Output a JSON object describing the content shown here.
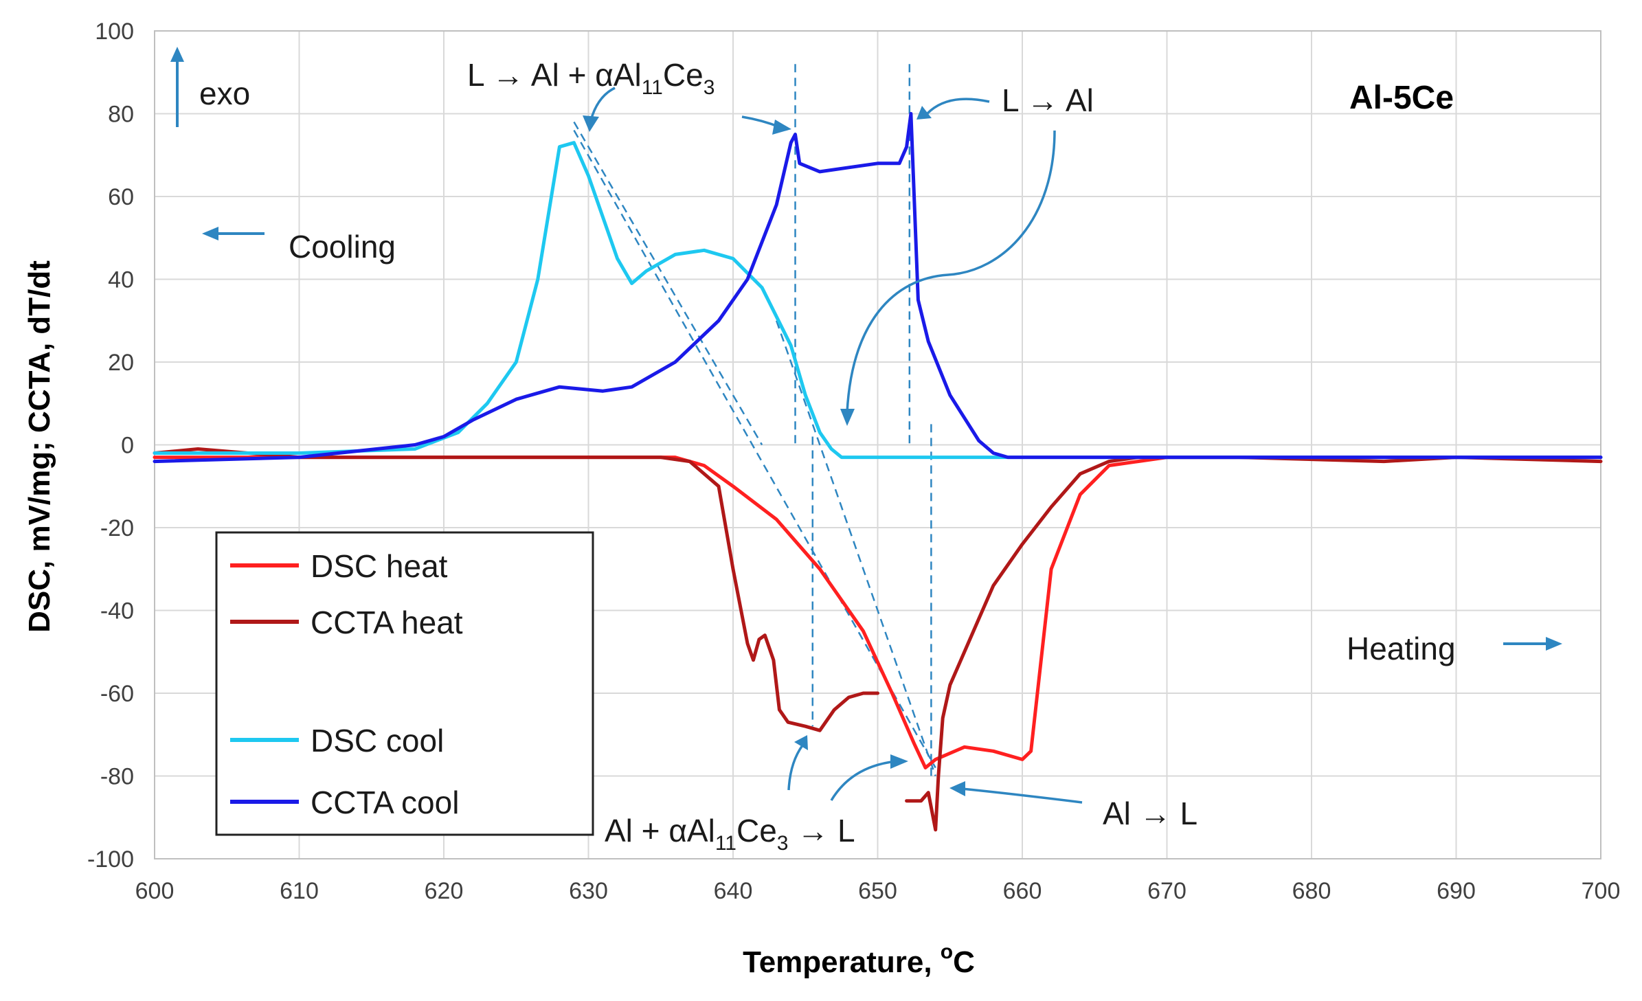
{
  "chart_data": {
    "type": "line",
    "title": "Al-5Ce",
    "xlabel": "Temperature, °C",
    "xlabel_main": "Temperature, ",
    "xlabel_sup": "o",
    "xlabel_unit": "C",
    "ylabel": "DSC, mV/mg; CCTA, dT/dt",
    "xlim": [
      600,
      700
    ],
    "ylim": [
      -100,
      100
    ],
    "x_ticks": [
      "600",
      "610",
      "620",
      "630",
      "640",
      "650",
      "660",
      "670",
      "680",
      "690",
      "700"
    ],
    "y_ticks": [
      "100",
      "80",
      "60",
      "40",
      "20",
      "0",
      "-20",
      "-40",
      "-60",
      "-80",
      "-100"
    ],
    "grid": true,
    "series": [
      {
        "name": "DSC heat",
        "color": "#ff2020",
        "x": [
          600,
          630,
          636,
          638,
          640,
          643,
          646,
          649,
          651,
          652.5,
          653.3,
          654,
          656,
          658,
          660,
          660.6,
          662,
          664,
          666,
          668,
          670,
          680,
          700
        ],
        "y": [
          -3,
          -3,
          -3,
          -5,
          -10,
          -18,
          -30,
          -45,
          -60,
          -72,
          -78,
          -76,
          -73,
          -74,
          -76,
          -74,
          -30,
          -12,
          -5,
          -4,
          -3,
          -3,
          -3
        ]
      },
      {
        "name": "CCTA heat",
        "color": "#b01818",
        "x": [
          600,
          603,
          610,
          620,
          630,
          635,
          637,
          639,
          640,
          641,
          641.4,
          641.8,
          642.2,
          642.8,
          643.2,
          643.8,
          645,
          646,
          647,
          648,
          649,
          650
        ],
        "y": [
          -2,
          -1,
          -3,
          -3,
          -3,
          -3,
          -4,
          -10,
          -30,
          -48,
          -52,
          -47,
          -46,
          -52,
          -64,
          -67,
          -68,
          -69,
          -64,
          -61,
          -60,
          -60
        ]
      },
      {
        "name": "CCTA heat",
        "color": "#b01818",
        "x": [
          652,
          653,
          653.5,
          654,
          654.2,
          654.5,
          655,
          656,
          657,
          658,
          660,
          662,
          664,
          666,
          668,
          670,
          675,
          685,
          690,
          700
        ],
        "y": [
          -86,
          -86,
          -84,
          -93,
          -80,
          -66,
          -58,
          -50,
          -42,
          -34,
          -24,
          -15,
          -7,
          -4,
          -3,
          -3,
          -3,
          -4,
          -3,
          -4
        ]
      },
      {
        "name": "DSC cool",
        "color": "#1ec8f0",
        "x": [
          600,
          610,
          618,
          621,
          623,
          625,
          626.5,
          628,
          629,
          630,
          631,
          632,
          633,
          634,
          636,
          638,
          640,
          642,
          644,
          645,
          646,
          646.8,
          647.5,
          650,
          700
        ],
        "y": [
          -2,
          -2,
          -1,
          3,
          10,
          20,
          40,
          72,
          73,
          65,
          55,
          45,
          39,
          42,
          46,
          47,
          45,
          38,
          24,
          12,
          3,
          -1,
          -3,
          -3,
          -3
        ]
      },
      {
        "name": "CCTA cool",
        "color": "#1a1ae8",
        "x": [
          600,
          610,
          618,
          620,
          622,
          625,
          628,
          631,
          633,
          636,
          639,
          641,
          643,
          644,
          644.3,
          644.6,
          646,
          648,
          650,
          651.5,
          652,
          652.3,
          652.8,
          653.5,
          655,
          657,
          658,
          659,
          660,
          700
        ],
        "y": [
          -4,
          -3,
          0,
          2,
          6,
          11,
          14,
          13,
          14,
          20,
          30,
          40,
          58,
          73,
          75,
          68,
          66,
          67,
          68,
          68,
          72,
          80,
          35,
          25,
          12,
          1,
          -2,
          -3,
          -3,
          -3
        ]
      }
    ],
    "annotations": {
      "exo": "exo",
      "cooling": "Cooling",
      "heating": "Heating",
      "reaction_top_left_pre": "L → Al + αAl",
      "reaction_top_left_sub": "11",
      "reaction_top_left_mid": "Ce",
      "reaction_top_left_sub2": "3",
      "reaction_top_right": "L → Al",
      "reaction_bottom_left_pre": "Al + αAl",
      "reaction_bottom_left_sub": "11",
      "reaction_bottom_left_mid": "Ce",
      "reaction_bottom_left_sub2": "3",
      "reaction_bottom_left_post": " → L",
      "reaction_bottom_right": "Al → L"
    },
    "legend": [
      "DSC heat",
      "CCTA heat",
      "DSC cool",
      "CCTA cool"
    ],
    "legend_position": "bottom-left"
  }
}
